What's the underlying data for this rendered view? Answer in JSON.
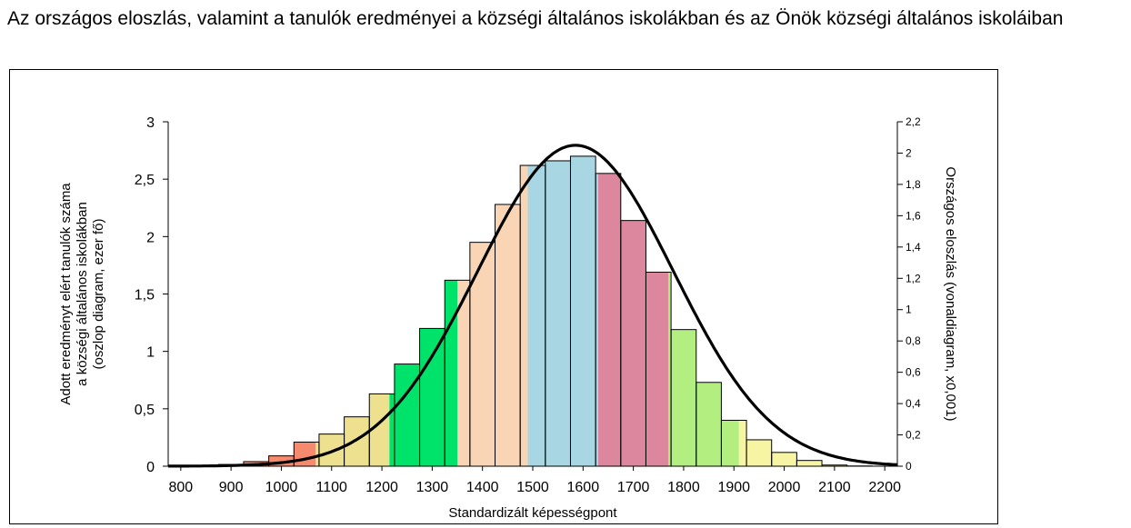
{
  "page": {
    "title": "Az országos eloszlás, valamint a tanulók eredményei a községi általános iskolákban és az Önök községi általános iskoláiban"
  },
  "chart_data": {
    "type": "bar",
    "title": "",
    "xlabel": "Standardizált képességpont",
    "ylabel_lines": [
      "Adott eredményt elért tanulók száma",
      "a községi általános iskolákban",
      "(oszlop diagram, ezer fő)"
    ],
    "y2label": "Országos eloszlás (vonaldiagram, x0,001)",
    "xlim": [
      775,
      2225
    ],
    "ylim": [
      0,
      3
    ],
    "y2lim": [
      0,
      2.2
    ],
    "x_ticks": [
      800,
      900,
      1000,
      1100,
      1200,
      1300,
      1400,
      1500,
      1600,
      1700,
      1800,
      1900,
      2000,
      2100,
      2200
    ],
    "x_tick_labels": [
      "800",
      "900",
      "1000",
      "1100",
      "1200",
      "1300",
      "1400",
      "1500",
      "1600",
      "1700",
      "1800",
      "1900",
      "2000",
      "2100",
      "2200"
    ],
    "y_ticks": [
      0,
      0.5,
      1,
      1.5,
      2,
      2.5,
      3
    ],
    "y_tick_labels": [
      "0",
      "0,5",
      "1",
      "1,5",
      "2",
      "2,5",
      "3"
    ],
    "y2_ticks": [
      0,
      0.2,
      0.4,
      0.6,
      0.8,
      1,
      1.2,
      1.4,
      1.6,
      1.8,
      2,
      2.2
    ],
    "y2_tick_labels": [
      "0",
      "0,2",
      "0,4",
      "0,6",
      "0,8",
      "1",
      "1,2",
      "1,4",
      "1,6",
      "1,8",
      "2",
      "2,2"
    ],
    "grid": false,
    "bars": {
      "x_start": [
        775,
        825,
        875,
        925,
        975,
        1025,
        1075,
        1125,
        1175,
        1225,
        1275,
        1325,
        1375,
        1425,
        1475,
        1525,
        1575,
        1625,
        1675,
        1725,
        1775,
        1825,
        1875,
        1925,
        1975,
        2025,
        2075,
        2125
      ],
      "values": [
        0.0,
        0.005,
        0.015,
        0.04,
        0.09,
        0.21,
        0.28,
        0.43,
        0.63,
        0.89,
        1.2,
        1.62,
        1.95,
        2.28,
        2.62,
        2.66,
        2.7,
        2.55,
        2.14,
        1.69,
        1.19,
        0.73,
        0.4,
        0.23,
        0.12,
        0.05,
        0.01,
        0.002
      ]
    },
    "background_bands": [
      {
        "from": 775,
        "to": 1068,
        "color": "#f58a6f"
      },
      {
        "from": 1068,
        "to": 1215,
        "color": "#ede08f"
      },
      {
        "from": 1215,
        "to": 1350,
        "color": "#00e36b"
      },
      {
        "from": 1350,
        "to": 1490,
        "color": "#fad5b5"
      },
      {
        "from": 1490,
        "to": 1630,
        "color": "#a9d6e3"
      },
      {
        "from": 1630,
        "to": 1770,
        "color": "#dd879e"
      },
      {
        "from": 1770,
        "to": 1910,
        "color": "#b3ef80"
      },
      {
        "from": 1910,
        "to": 2225,
        "color": "#f7f4a3"
      }
    ],
    "series": [
      {
        "type": "line",
        "axis": "right",
        "color": "#000000",
        "distribution": "normal",
        "mean": 1585,
        "std": 195,
        "peak": 2.05
      }
    ]
  }
}
